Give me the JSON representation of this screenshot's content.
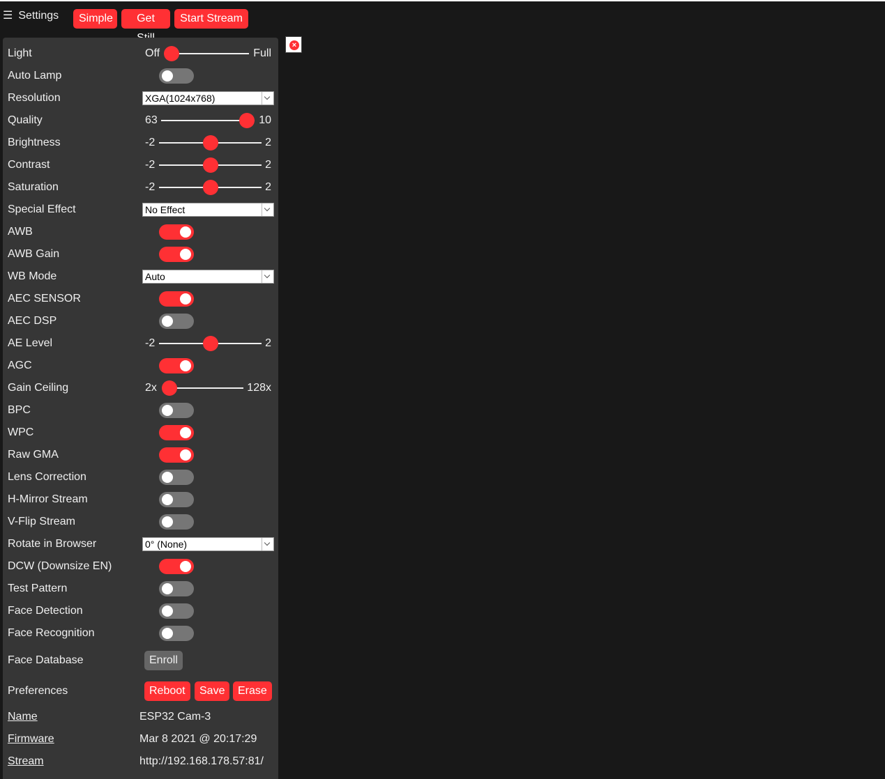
{
  "header": {
    "menu_icon": "hamburger-icon",
    "settings_label": "Settings",
    "buttons": {
      "simple": "Simple",
      "get_still": "Get Still",
      "start_stream": "Start Stream"
    }
  },
  "colors": {
    "accent": "#ff3034",
    "panel": "#363636",
    "background": "#181818"
  },
  "controls": {
    "light": {
      "label": "Light",
      "min": "Off",
      "max": "Full",
      "value_fraction": 0.0
    },
    "auto_lamp": {
      "label": "Auto Lamp",
      "on": false
    },
    "resolution": {
      "label": "Resolution",
      "selected": "XGA(1024x768)"
    },
    "quality": {
      "label": "Quality",
      "min": "63",
      "max": "10",
      "value_fraction": 1.0
    },
    "brightness": {
      "label": "Brightness",
      "min": "-2",
      "max": "2",
      "value": 0
    },
    "contrast": {
      "label": "Contrast",
      "min": "-2",
      "max": "2",
      "value": 0
    },
    "saturation": {
      "label": "Saturation",
      "min": "-2",
      "max": "2",
      "value": 0
    },
    "special_effect": {
      "label": "Special Effect",
      "selected": "No Effect"
    },
    "awb": {
      "label": "AWB",
      "on": true
    },
    "awb_gain": {
      "label": "AWB Gain",
      "on": true
    },
    "wb_mode": {
      "label": "WB Mode",
      "selected": "Auto"
    },
    "aec_sensor": {
      "label": "AEC SENSOR",
      "on": true
    },
    "aec_dsp": {
      "label": "AEC DSP",
      "on": false
    },
    "ae_level": {
      "label": "AE Level",
      "min": "-2",
      "max": "2",
      "value": 0
    },
    "agc": {
      "label": "AGC",
      "on": true
    },
    "gain_ceiling": {
      "label": "Gain Ceiling",
      "min": "2x",
      "max": "128x",
      "value_fraction": 0.0
    },
    "bpc": {
      "label": "BPC",
      "on": false
    },
    "wpc": {
      "label": "WPC",
      "on": true
    },
    "raw_gma": {
      "label": "Raw GMA",
      "on": true
    },
    "lens_correction": {
      "label": "Lens Correction",
      "on": false
    },
    "h_mirror": {
      "label": "H-Mirror Stream",
      "on": false
    },
    "v_flip": {
      "label": "V-Flip Stream",
      "on": false
    },
    "rotate": {
      "label": "Rotate in Browser",
      "selected": "0° (None)"
    },
    "dcw": {
      "label": "DCW (Downsize EN)",
      "on": true
    },
    "test_pattern": {
      "label": "Test Pattern",
      "on": false
    },
    "face_detection": {
      "label": "Face Detection",
      "on": false
    },
    "face_recognition": {
      "label": "Face Recognition",
      "on": false
    },
    "face_database": {
      "label": "Face Database",
      "enroll": "Enroll"
    },
    "preferences": {
      "label": "Preferences",
      "reboot": "Reboot",
      "save": "Save",
      "erase": "Erase"
    }
  },
  "info": {
    "name": {
      "label": "Name",
      "value": "ESP32 Cam-3"
    },
    "firmware": {
      "label": "Firmware",
      "value": "Mar 8 2021 @ 20:17:29"
    },
    "stream": {
      "label": "Stream",
      "value": "http://192.168.178.57:81/"
    }
  },
  "close_icon": "close-icon"
}
